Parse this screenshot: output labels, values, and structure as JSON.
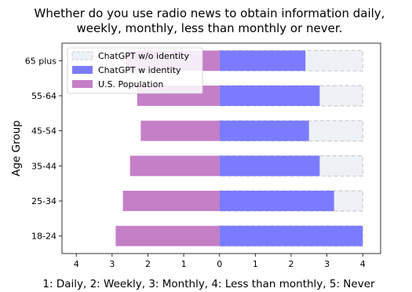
{
  "chart_data": {
    "type": "bar",
    "orientation": "horizontal",
    "title_lines": [
      "Whether do you use radio news to obtain information daily,",
      "weekly, monthly, less than monthly or never."
    ],
    "xlabel": "1: Daily, 2: Weekly, 3: Monthly, 4: Less than monthly, 5: Never",
    "ylabel": "Age Group",
    "categories": [
      "18-24",
      "25-34",
      "35-44",
      "45-54",
      "55-64",
      "65 plus"
    ],
    "xlim": [
      -4.4,
      4.5
    ],
    "x_ticks": [
      -4,
      -3,
      -2,
      -1,
      0,
      1,
      2,
      3,
      4
    ],
    "x_tick_labels": [
      "4",
      "3",
      "2",
      "1",
      "0",
      "1",
      "2",
      "3",
      "4"
    ],
    "series": [
      {
        "name": "ChatGPT w/o identity",
        "side": "right",
        "style": "dashed",
        "color": "#EEF1F6",
        "edge": "#CCCCCC",
        "values": [
          4.0,
          4.0,
          4.0,
          4.0,
          4.0,
          4.0
        ]
      },
      {
        "name": "ChatGPT w identity",
        "side": "right",
        "style": "solid",
        "color": "#7B7BFF",
        "values": [
          4.0,
          3.2,
          2.8,
          2.5,
          2.8,
          2.4
        ]
      },
      {
        "name": "U.S. Population",
        "side": "left",
        "style": "solid",
        "color": "#C47FC6",
        "values": [
          2.9,
          2.7,
          2.5,
          2.2,
          2.3,
          2.6
        ]
      }
    ],
    "grid": false,
    "legend_position": "upper-left"
  }
}
